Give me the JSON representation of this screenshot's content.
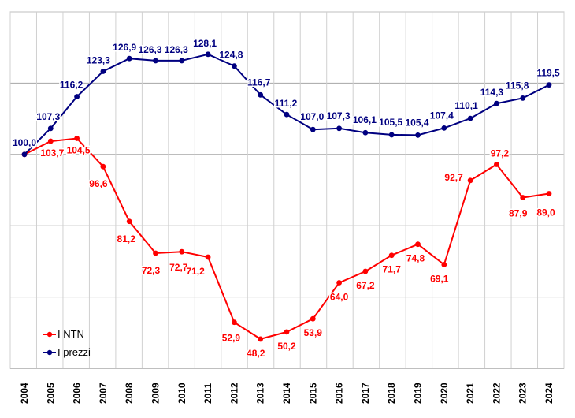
{
  "chart_data": {
    "type": "line",
    "x": [
      "2004",
      "2005",
      "2006",
      "2007",
      "2008",
      "2009",
      "2010",
      "2011",
      "2012",
      "2013",
      "2014",
      "2015",
      "2016",
      "2017",
      "2018",
      "2019",
      "2020",
      "2021",
      "2022",
      "2023",
      "2024"
    ],
    "series": [
      {
        "name": "I NTN",
        "color": "#ff0000",
        "values": [
          100.0,
          103.7,
          104.5,
          96.6,
          81.2,
          72.3,
          72.7,
          71.2,
          52.9,
          48.2,
          50.2,
          53.9,
          64.0,
          67.2,
          71.7,
          74.8,
          69.1,
          92.7,
          97.2,
          87.9,
          89.0
        ],
        "labels": [
          "",
          "103,7",
          "104,5",
          "96,6",
          "81,2",
          "72,3",
          "72,7",
          "71,2",
          "52,9",
          "48,2",
          "50,2",
          "53,9",
          "64,0",
          "67,2",
          "71,7",
          "74,8",
          "69,1",
          "92,7",
          "97,2",
          "87,9",
          "89,0"
        ]
      },
      {
        "name": "I prezzi",
        "color": "#000080",
        "values": [
          100.0,
          107.3,
          116.2,
          123.3,
          126.9,
          126.3,
          126.3,
          128.1,
          124.8,
          116.7,
          111.2,
          107.0,
          107.3,
          106.1,
          105.5,
          105.4,
          107.4,
          110.1,
          114.3,
          115.8,
          119.5
        ],
        "labels": [
          "100,0",
          "107,3",
          "116,2",
          "123,3",
          "126,9",
          "126,3",
          "126,3",
          "128,1",
          "124,8",
          "116,7",
          "111,2",
          "107,0",
          "107,3",
          "106,1",
          "105,5",
          "105,4",
          "107,4",
          "110,1",
          "114,3",
          "115,8",
          "119,5"
        ]
      }
    ],
    "ylim": [
      40,
      140
    ],
    "grid": true,
    "legend": "bottom-left"
  }
}
